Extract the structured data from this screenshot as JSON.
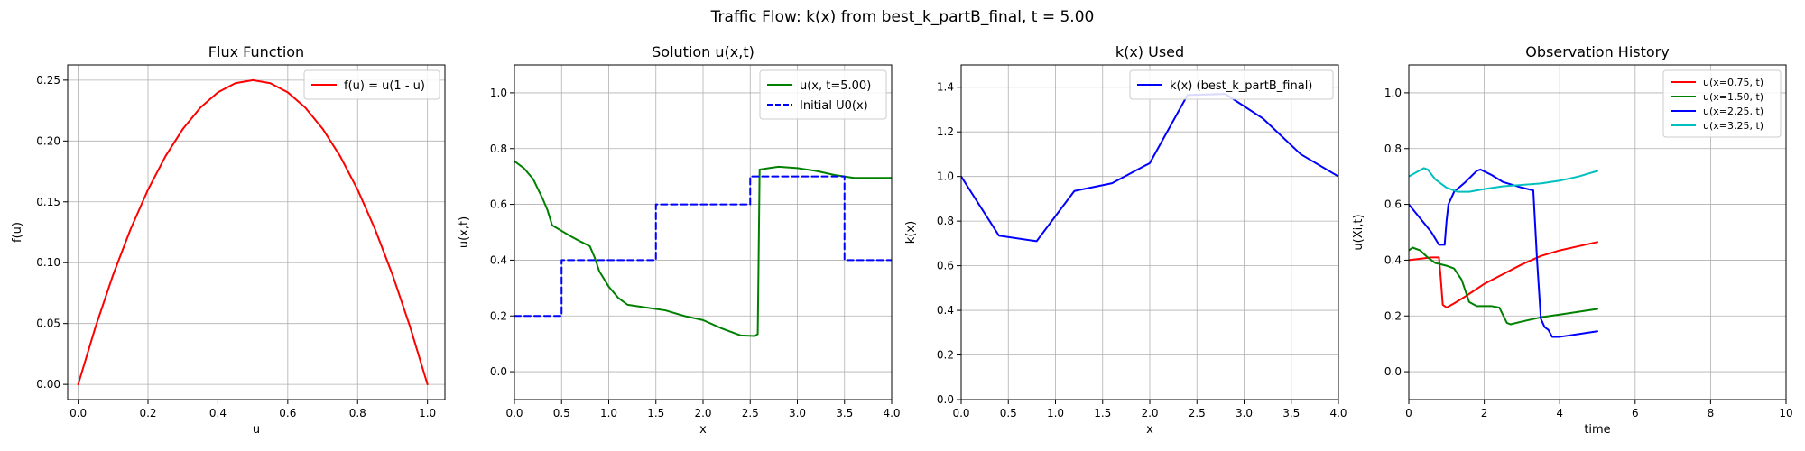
{
  "figure": {
    "suptitle": "Traffic Flow: k(x) from best_k_partB_final, t = 5.00"
  },
  "chart_data": [
    {
      "id": "flux",
      "type": "line",
      "title": "Flux Function",
      "xlabel": "u",
      "ylabel": "f(u)",
      "xlim": [
        -0.03,
        1.05
      ],
      "ylim": [
        -0.0125,
        0.2625
      ],
      "xticks": [
        0.0,
        0.2,
        0.4,
        0.6,
        0.8,
        1.0
      ],
      "xtick_labels": [
        "0.0",
        "0.2",
        "0.4",
        "0.6",
        "0.8",
        "1.0"
      ],
      "yticks": [
        0.0,
        0.05,
        0.1,
        0.15,
        0.2,
        0.25
      ],
      "ytick_labels": [
        "0.00",
        "0.05",
        "0.10",
        "0.15",
        "0.20",
        "0.25"
      ],
      "grid": true,
      "legend": "top-right",
      "series": [
        {
          "name": "f(u) = u(1 - u)",
          "color": "#ff0000",
          "style": "solid",
          "x": [
            0,
            0.05,
            0.1,
            0.15,
            0.2,
            0.25,
            0.3,
            0.35,
            0.4,
            0.45,
            0.5,
            0.55,
            0.6,
            0.65,
            0.7,
            0.75,
            0.8,
            0.85,
            0.9,
            0.95,
            1.0
          ],
          "y": [
            0,
            0.0475,
            0.09,
            0.1275,
            0.16,
            0.1875,
            0.21,
            0.2275,
            0.24,
            0.2475,
            0.25,
            0.2475,
            0.24,
            0.2275,
            0.21,
            0.1875,
            0.16,
            0.1275,
            0.09,
            0.0475,
            0
          ]
        }
      ]
    },
    {
      "id": "solution",
      "type": "line",
      "title": "Solution u(x,t)",
      "xlabel": "x",
      "ylabel": "u(x,t)",
      "xlim": [
        0,
        4
      ],
      "ylim": [
        -0.1,
        1.1
      ],
      "xticks": [
        0,
        0.5,
        1.0,
        1.5,
        2.0,
        2.5,
        3.0,
        3.5,
        4.0
      ],
      "xtick_labels": [
        "0.0",
        "0.5",
        "1.0",
        "1.5",
        "2.0",
        "2.5",
        "3.0",
        "3.5",
        "4.0"
      ],
      "yticks": [
        0.0,
        0.2,
        0.4,
        0.6,
        0.8,
        1.0
      ],
      "ytick_labels": [
        "0.0",
        "0.2",
        "0.4",
        "0.6",
        "0.8",
        "1.0"
      ],
      "grid": true,
      "legend": "top-right",
      "series": [
        {
          "name": "u(x, t=5.00)",
          "color": "#008000",
          "style": "solid",
          "x": [
            0,
            0.1,
            0.2,
            0.3,
            0.35,
            0.4,
            0.5,
            0.6,
            0.7,
            0.8,
            0.85,
            0.9,
            1.0,
            1.1,
            1.2,
            1.4,
            1.6,
            1.8,
            2.0,
            2.2,
            2.4,
            2.55,
            2.58,
            2.6,
            2.7,
            2.8,
            3.0,
            3.2,
            3.4,
            3.6,
            3.8,
            4.0
          ],
          "y": [
            0.755,
            0.73,
            0.69,
            0.62,
            0.58,
            0.525,
            0.505,
            0.485,
            0.467,
            0.45,
            0.41,
            0.36,
            0.305,
            0.265,
            0.24,
            0.23,
            0.22,
            0.2,
            0.185,
            0.155,
            0.13,
            0.128,
            0.135,
            0.725,
            0.73,
            0.735,
            0.73,
            0.72,
            0.705,
            0.695,
            0.695,
            0.695
          ]
        },
        {
          "name": "Initial U0(x)",
          "color": "#0000ff",
          "style": "dashed",
          "x": [
            0,
            0.5,
            0.5,
            1.5,
            1.5,
            2.5,
            2.5,
            3.5,
            3.5,
            4.0
          ],
          "y": [
            0.2,
            0.2,
            0.4,
            0.4,
            0.6,
            0.6,
            0.7,
            0.7,
            0.4,
            0.4
          ]
        }
      ]
    },
    {
      "id": "kx",
      "type": "line",
      "title": "k(x) Used",
      "xlabel": "x",
      "ylabel": "k(x)",
      "xlim": [
        0,
        4
      ],
      "ylim": [
        0,
        1.5
      ],
      "xticks": [
        0,
        0.5,
        1.0,
        1.5,
        2.0,
        2.5,
        3.0,
        3.5,
        4.0
      ],
      "xtick_labels": [
        "0.0",
        "0.5",
        "1.0",
        "1.5",
        "2.0",
        "2.5",
        "3.0",
        "3.5",
        "4.0"
      ],
      "yticks": [
        0.0,
        0.2,
        0.4,
        0.6,
        0.8,
        1.0,
        1.2,
        1.4
      ],
      "ytick_labels": [
        "0.0",
        "0.2",
        "0.4",
        "0.6",
        "0.8",
        "1.0",
        "1.2",
        "1.4"
      ],
      "grid": true,
      "legend": "top-right",
      "series": [
        {
          "name": "k(x) (best_k_partB_final)",
          "color": "#0000ff",
          "style": "solid",
          "x": [
            0,
            0.4,
            0.8,
            1.2,
            1.6,
            2.0,
            2.4,
            2.8,
            3.2,
            3.6,
            4.0
          ],
          "y": [
            1.0,
            0.735,
            0.71,
            0.935,
            0.97,
            1.06,
            1.365,
            1.37,
            1.26,
            1.1,
            1.0
          ]
        }
      ]
    },
    {
      "id": "observations",
      "type": "line",
      "title": "Observation History",
      "xlabel": "time",
      "ylabel": "u(Xi,t)",
      "xlim": [
        0,
        10
      ],
      "ylim": [
        -0.1,
        1.1
      ],
      "xticks": [
        0,
        2,
        4,
        6,
        8,
        10
      ],
      "xtick_labels": [
        "0",
        "2",
        "4",
        "6",
        "8",
        "10"
      ],
      "yticks": [
        0.0,
        0.2,
        0.4,
        0.6,
        0.8,
        1.0
      ],
      "ytick_labels": [
        "0.0",
        "0.2",
        "0.4",
        "0.6",
        "0.8",
        "1.0"
      ],
      "grid": true,
      "legend": "top-right",
      "legend_small": true,
      "series": [
        {
          "name": "u(x=0.75, t)",
          "color": "#ff0000",
          "style": "solid",
          "x": [
            0,
            0.3,
            0.6,
            0.8,
            0.85,
            0.9,
            1.0,
            1.2,
            1.5,
            2.0,
            2.5,
            3.0,
            3.5,
            4.0,
            4.5,
            5.0
          ],
          "y": [
            0.4,
            0.405,
            0.41,
            0.41,
            0.33,
            0.24,
            0.23,
            0.245,
            0.27,
            0.315,
            0.35,
            0.385,
            0.415,
            0.435,
            0.45,
            0.465
          ]
        },
        {
          "name": "u(x=1.50, t)",
          "color": "#008000",
          "style": "solid",
          "x": [
            0,
            0.1,
            0.3,
            0.5,
            0.7,
            1.0,
            1.2,
            1.4,
            1.6,
            1.8,
            2.0,
            2.2,
            2.4,
            2.6,
            2.7,
            3.0,
            3.5,
            4.0,
            4.5,
            5.0
          ],
          "y": [
            0.435,
            0.445,
            0.435,
            0.41,
            0.39,
            0.38,
            0.37,
            0.33,
            0.25,
            0.235,
            0.235,
            0.235,
            0.23,
            0.175,
            0.17,
            0.18,
            0.195,
            0.205,
            0.215,
            0.225
          ]
        },
        {
          "name": "u(x=2.25, t)",
          "color": "#0000ff",
          "style": "solid",
          "x": [
            0,
            0.3,
            0.6,
            0.8,
            0.95,
            1.0,
            1.05,
            1.2,
            1.5,
            1.8,
            1.9,
            2.2,
            2.5,
            3.0,
            3.3,
            3.4,
            3.5,
            3.6,
            3.7,
            3.8,
            4.0,
            4.5,
            5.0
          ],
          "y": [
            0.6,
            0.55,
            0.5,
            0.455,
            0.455,
            0.54,
            0.6,
            0.645,
            0.68,
            0.72,
            0.725,
            0.705,
            0.68,
            0.66,
            0.65,
            0.4,
            0.19,
            0.16,
            0.15,
            0.125,
            0.125,
            0.135,
            0.145
          ]
        },
        {
          "name": "u(x=3.25, t)",
          "color": "#00bfbf",
          "style": "solid",
          "x": [
            0,
            0.2,
            0.4,
            0.5,
            0.7,
            1.0,
            1.3,
            1.6,
            2.0,
            2.5,
            3.0,
            3.5,
            4.0,
            4.5,
            5.0
          ],
          "y": [
            0.7,
            0.715,
            0.73,
            0.725,
            0.69,
            0.66,
            0.645,
            0.645,
            0.655,
            0.665,
            0.67,
            0.675,
            0.685,
            0.7,
            0.72
          ]
        }
      ]
    }
  ]
}
